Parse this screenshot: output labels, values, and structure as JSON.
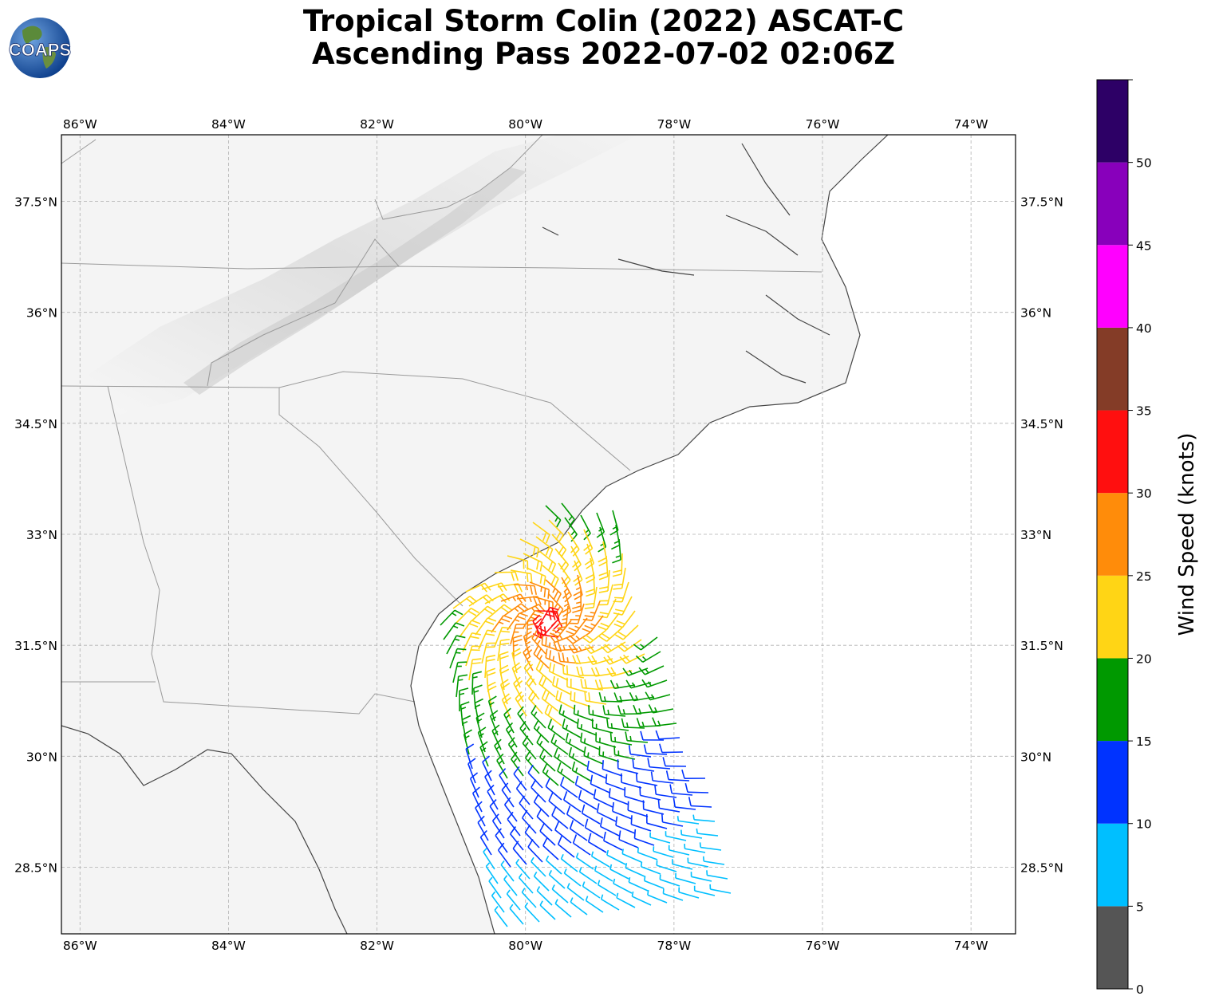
{
  "logo": {
    "text": "COAPS",
    "icon": "globe-logo-icon"
  },
  "title": {
    "line1": "Tropical Storm Colin (2022) ASCAT-C",
    "line2": "Ascending Pass 2022-07-02 02:06Z"
  },
  "map": {
    "lon_range": [
      -86.25,
      -73.4
    ],
    "lat_range": [
      27.6,
      38.4
    ],
    "lon_ticks": [
      {
        "value": -86,
        "label": "86°W"
      },
      {
        "value": -84,
        "label": "84°W"
      },
      {
        "value": -82,
        "label": "82°W"
      },
      {
        "value": -80,
        "label": "80°W"
      },
      {
        "value": -78,
        "label": "78°W"
      },
      {
        "value": -76,
        "label": "76°W"
      },
      {
        "value": -74,
        "label": "74°W"
      }
    ],
    "lat_ticks": [
      {
        "value": 37.5,
        "label": "37.5°N"
      },
      {
        "value": 36,
        "label": "36°N"
      },
      {
        "value": 34.5,
        "label": "34.5°N"
      },
      {
        "value": 33,
        "label": "33°N"
      },
      {
        "value": 31.5,
        "label": "31.5°N"
      },
      {
        "value": 30,
        "label": "30°N"
      },
      {
        "value": 28.5,
        "label": "28.5°N"
      }
    ],
    "grid": true,
    "background": "grayscale satellite imagery over land, white ocean"
  },
  "colorbar": {
    "label": "Wind Speed (knots)",
    "ticks": [
      "0",
      "5",
      "10",
      "15",
      "20",
      "25",
      "30",
      "35",
      "40",
      "45",
      "50"
    ],
    "bins": [
      {
        "min": 0,
        "max": 5,
        "color": "#555555"
      },
      {
        "min": 5,
        "max": 10,
        "color": "#00bfff"
      },
      {
        "min": 10,
        "max": 15,
        "color": "#0033ff"
      },
      {
        "min": 15,
        "max": 20,
        "color": "#009900"
      },
      {
        "min": 20,
        "max": 25,
        "color": "#ffd515"
      },
      {
        "min": 25,
        "max": 30,
        "color": "#ff8c0a"
      },
      {
        "min": 30,
        "max": 35,
        "color": "#ff0f0f"
      },
      {
        "min": 35,
        "max": 40,
        "color": "#843c27"
      },
      {
        "min": 40,
        "max": 45,
        "color": "#ff00ff"
      },
      {
        "min": 45,
        "max": 50,
        "color": "#8800bb"
      },
      {
        "min": 50,
        "max": 55,
        "color": "#2d0066"
      }
    ]
  },
  "wind_field": {
    "type": "wind barbs",
    "center": {
      "lon": -79.7,
      "lat": 31.8
    },
    "peak_speed_kt": 33
  }
}
